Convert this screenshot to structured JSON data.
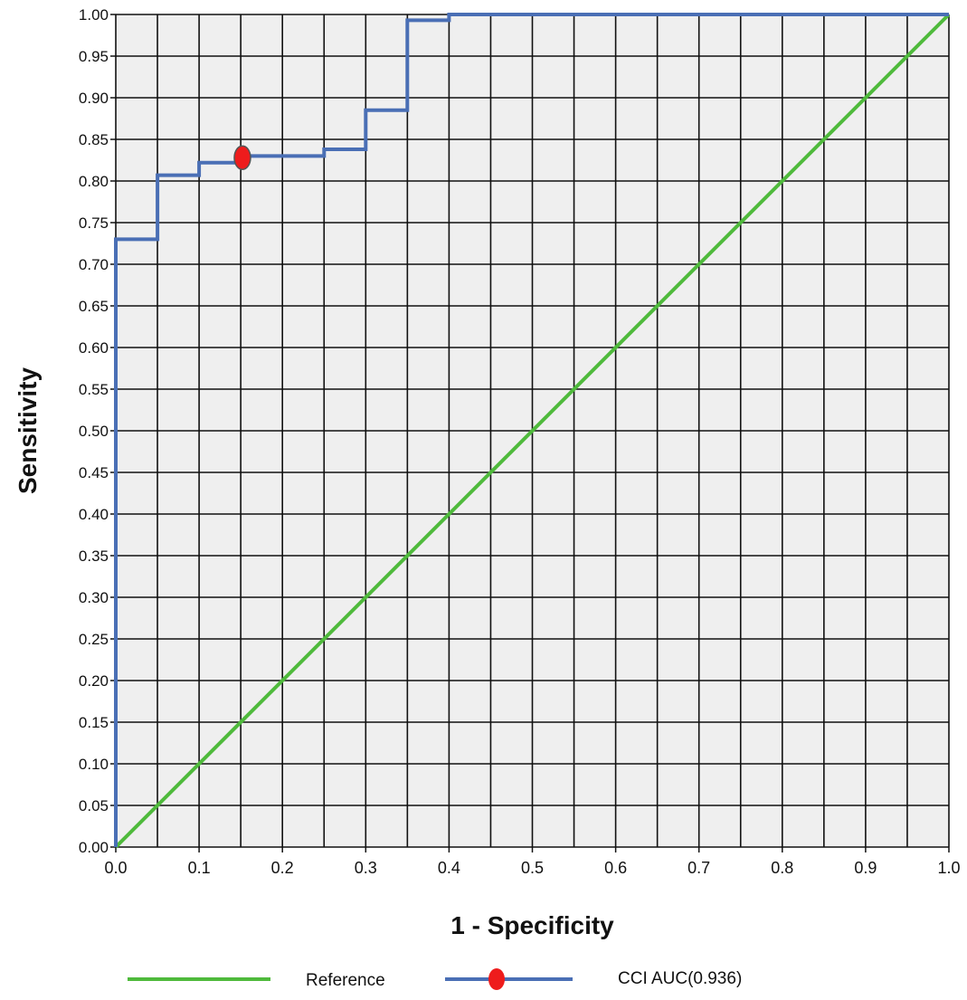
{
  "chart_data": {
    "type": "line",
    "title": "",
    "xlabel": "1 - Specificity",
    "ylabel": "Sensitivity",
    "xlim": [
      0,
      1
    ],
    "ylim": [
      0,
      1
    ],
    "x_ticks": [
      "0.0",
      "0.1",
      "0.2",
      "0.3",
      "0.4",
      "0.5",
      "0.6",
      "0.7",
      "0.8",
      "0.9",
      "1.0"
    ],
    "y_ticks": [
      "0.00",
      "0.05",
      "0.10",
      "0.15",
      "0.20",
      "0.25",
      "0.30",
      "0.35",
      "0.40",
      "0.45",
      "0.50",
      "0.55",
      "0.60",
      "0.65",
      "0.70",
      "0.75",
      "0.80",
      "0.85",
      "0.90",
      "0.95",
      "1.00"
    ],
    "grid": true,
    "grid_step": 0.05,
    "legend_position": "bottom",
    "series": [
      {
        "name": "Reference",
        "color": "#4fba3c",
        "points": [
          [
            0,
            0
          ],
          [
            1,
            1
          ]
        ]
      },
      {
        "name": "CCI AUC(0.936)",
        "color": "#4a6fb5",
        "marker_color": "#ee1c1c",
        "points": [
          [
            0.0,
            0.0
          ],
          [
            0.0,
            0.73
          ],
          [
            0.05,
            0.73
          ],
          [
            0.05,
            0.807
          ],
          [
            0.1,
            0.807
          ],
          [
            0.1,
            0.822
          ],
          [
            0.15,
            0.822
          ],
          [
            0.15,
            0.83
          ],
          [
            0.25,
            0.83
          ],
          [
            0.25,
            0.838
          ],
          [
            0.3,
            0.838
          ],
          [
            0.3,
            0.885
          ],
          [
            0.35,
            0.885
          ],
          [
            0.35,
            0.993
          ],
          [
            0.4,
            0.993
          ],
          [
            0.4,
            1.0
          ],
          [
            1.0,
            1.0
          ]
        ],
        "highlight_point": [
          0.152,
          0.828
        ]
      }
    ]
  }
}
